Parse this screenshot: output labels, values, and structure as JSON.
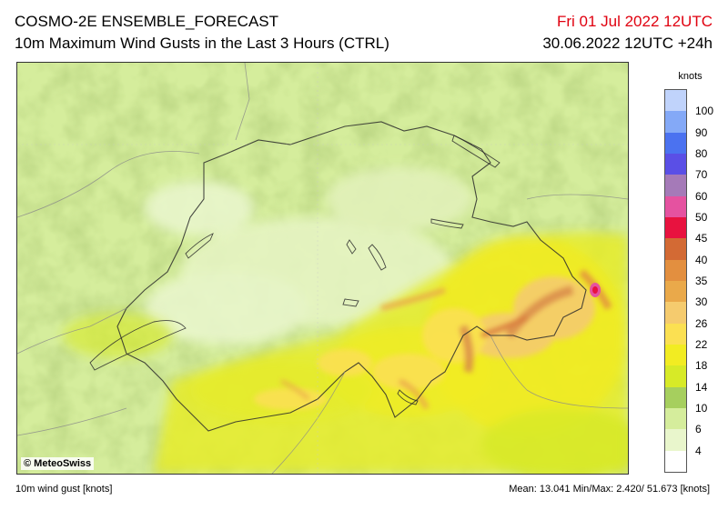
{
  "header": {
    "title": "COSMO-2E ENSEMBLE_FORECAST",
    "subtitle": "10m Maximum Wind Gusts in the Last 3 Hours (CTRL)",
    "valid_time": "Fri 01 Jul 2022 12UTC",
    "run_time": "30.06.2022 12UTC +24h",
    "valid_time_color": "#e0000f"
  },
  "map": {
    "copyright": "© MeteoSwiss"
  },
  "legend": {
    "unit": "knots",
    "bins": [
      {
        "color": "#ffffff",
        "label": "4"
      },
      {
        "color": "#e9f6cc",
        "label": "6"
      },
      {
        "color": "#d5ed9c",
        "label": "10"
      },
      {
        "color": "#a6cf5e",
        "label": "14"
      },
      {
        "color": "#d7ea27",
        "label": "18"
      },
      {
        "color": "#f2ec22",
        "label": "22"
      },
      {
        "color": "#fbe052",
        "label": "26"
      },
      {
        "color": "#f5cb6e",
        "label": "30"
      },
      {
        "color": "#eaa94a",
        "label": "35"
      },
      {
        "color": "#e38f3f",
        "label": "40"
      },
      {
        "color": "#d36a34",
        "label": "45"
      },
      {
        "color": "#e8123f",
        "label": "50"
      },
      {
        "color": "#e552a0",
        "label": "60"
      },
      {
        "color": "#a57ab8",
        "label": "70"
      },
      {
        "color": "#5a4fe6",
        "label": "80"
      },
      {
        "color": "#4b72f0",
        "label": "90"
      },
      {
        "color": "#84a9f7",
        "label": "100"
      },
      {
        "color": "#c0d3fb",
        "label": ""
      }
    ],
    "top_cap_color": "#c0d3fb"
  },
  "footer": {
    "left": "10m wind gust [knots]",
    "right": "Mean:  13.041 Min/Max:   2.420/ 51.673 [knots]"
  }
}
